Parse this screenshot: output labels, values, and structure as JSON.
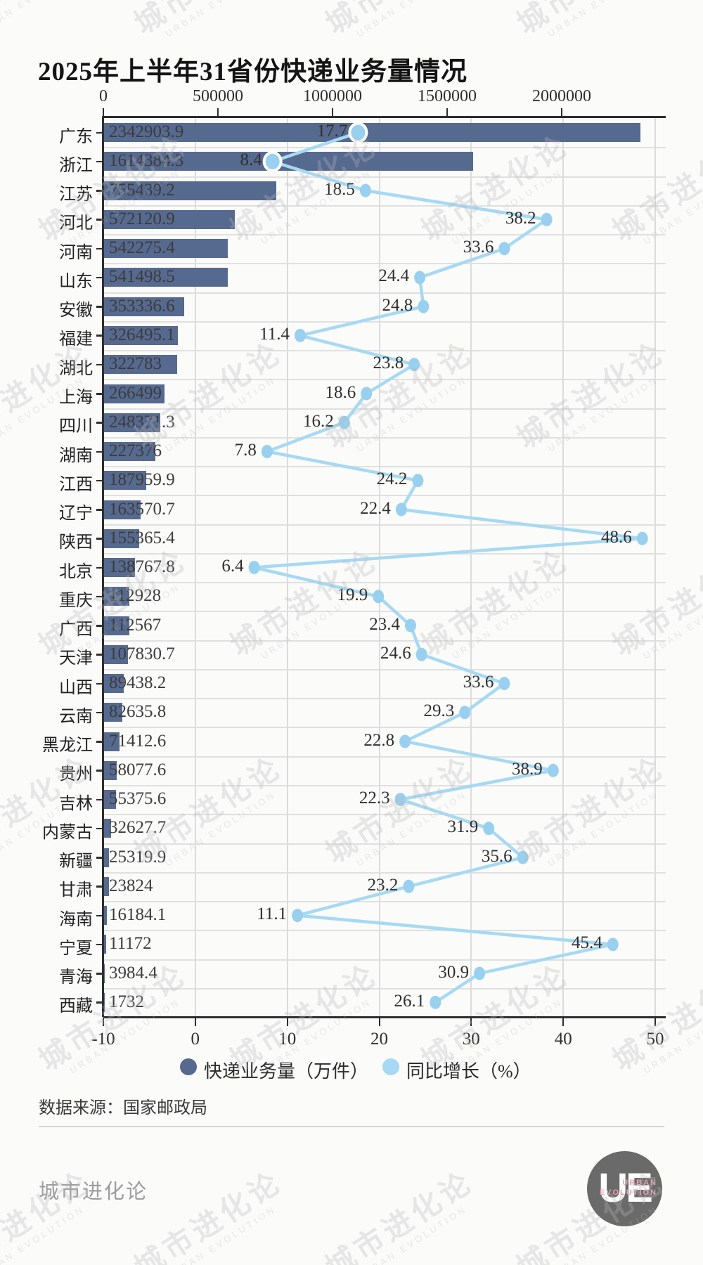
{
  "title": "2025年上半年31省份快递业务量情况",
  "source": "数据来源：国家邮政局",
  "footer": {
    "brand": "城市进化论",
    "logo_main": "UE",
    "logo_sub1": "URBAN",
    "logo_sub2": "EVOLUTION"
  },
  "watermark": {
    "line1": "城市进化论",
    "line2": "URBAN EVOLUTION"
  },
  "colors": {
    "bar": "#56698f",
    "line": "#a6d9f3",
    "marker": "#99d0ef",
    "grid": "#dcdcdc",
    "axis": "#2e2e2e",
    "accent_logo_text": "#e9a2b4"
  },
  "legend": [
    {
      "label": "快递业务量（万件）",
      "color": "#56698f"
    },
    {
      "label": "同比增长（%）",
      "color": "#a6d9f3"
    }
  ],
  "chart_data": {
    "type": "bar",
    "subtype": "horizontal dual-axis bar + line(markers)",
    "title": "2025年上半年31省份快递业务量情况",
    "categories": [
      "广东",
      "浙江",
      "江苏",
      "河北",
      "河南",
      "山东",
      "安徽",
      "福建",
      "湖北",
      "上海",
      "四川",
      "湖南",
      "江西",
      "辽宁",
      "陕西",
      "北京",
      "重庆",
      "广西",
      "天津",
      "山西",
      "云南",
      "黑龙江",
      "贵州",
      "吉林",
      "内蒙古",
      "新疆",
      "甘肃",
      "海南",
      "宁夏",
      "青海",
      "西藏"
    ],
    "series": [
      {
        "name": "快递业务量（万件）",
        "axis": "top",
        "values": [
          2342903.9,
          1614384.3,
          755439.2,
          572120.9,
          542275.4,
          541498.5,
          353336.6,
          326495.1,
          322783,
          266499,
          248371.3,
          227376,
          187959.9,
          163570.7,
          155365.4,
          138767.8,
          112928,
          112567,
          107830.7,
          89438.2,
          82635.8,
          71412.6,
          58077.6,
          55375.6,
          32627.7,
          25319.9,
          23824,
          16184.1,
          11172,
          3984.4,
          1732
        ],
        "labels": [
          "2342903.9",
          "1614384.3",
          "755439.2",
          "572120.9",
          "542275.4",
          "541498.5",
          "353336.6",
          "326495.1",
          "322783",
          "266499",
          "248371.3",
          "227376",
          "187959.9",
          "163570.7",
          "155365.4",
          "138767.8",
          "112928",
          "112567",
          "107830.7",
          "89438.2",
          "82635.8",
          "71412.6",
          "58077.6",
          "55375.6",
          "32627.7",
          "25319.9",
          "23824",
          "16184.1",
          "11172",
          "3984.4",
          "1732"
        ]
      },
      {
        "name": "同比增长（%）",
        "axis": "bottom",
        "values": [
          17.7,
          8.4,
          18.5,
          38.2,
          33.6,
          24.4,
          24.8,
          11.4,
          23.8,
          18.6,
          16.2,
          7.8,
          24.2,
          22.4,
          48.6,
          6.4,
          19.9,
          23.4,
          24.6,
          33.6,
          29.3,
          22.8,
          38.9,
          22.3,
          31.9,
          35.6,
          23.2,
          11.1,
          45.4,
          30.9,
          26.1
        ],
        "labels": [
          "17.7",
          "8.4",
          "18.5",
          "38.2",
          "33.6",
          "24.4",
          "24.8",
          "11.4",
          "23.8",
          "18.6",
          "16.2",
          "7.8",
          "24.2",
          "22.4",
          "48.6",
          "6.4",
          "19.9",
          "23.4",
          "24.6",
          "33.6",
          "29.3",
          "22.8",
          "38.9",
          "22.3",
          "31.9",
          "35.6",
          "23.2",
          "11.1",
          "45.4",
          "30.9",
          "26.1"
        ],
        "highlighted_points": [
          0,
          1
        ]
      }
    ],
    "top_axis": {
      "ticks": [
        "0",
        "500000",
        "1000000",
        "1500000",
        "2000000"
      ],
      "range": [
        0,
        2450000
      ]
    },
    "bottom_axis": {
      "ticks": [
        "-10",
        "0",
        "10",
        "20",
        "30",
        "40",
        "50"
      ],
      "range": [
        -10,
        50
      ]
    },
    "grid": true,
    "legend_position": "bottom"
  }
}
